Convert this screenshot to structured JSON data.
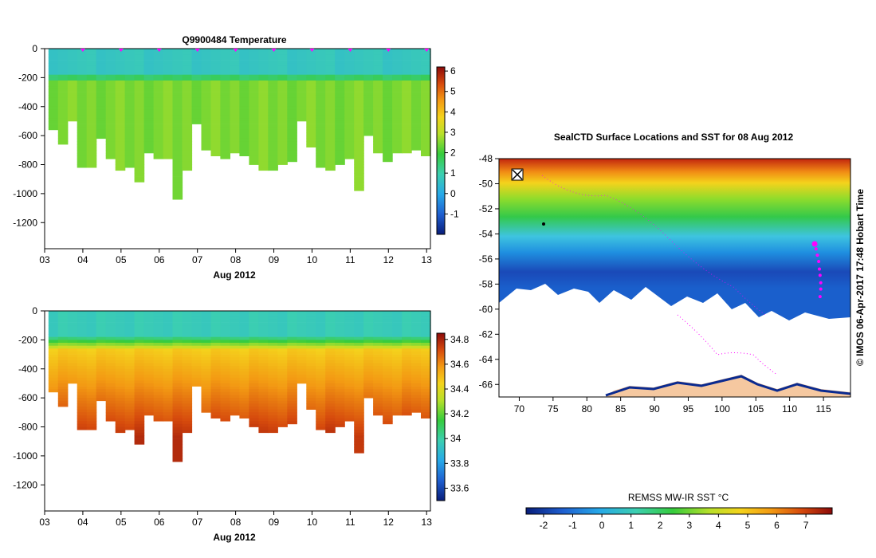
{
  "chart_data": [
    {
      "type": "heatmap",
      "title": "Q9900484  Temperature",
      "xlabel": "Aug 2012",
      "ylabel": "",
      "x_ticks": [
        "03",
        "04",
        "05",
        "06",
        "07",
        "08",
        "09",
        "10",
        "11",
        "12",
        "13"
      ],
      "x_range_days": [
        3,
        13.1
      ],
      "y_ticks": [
        0,
        -200,
        -400,
        -600,
        -800,
        -1000,
        -1200
      ],
      "ylim": [
        -1380,
        0
      ],
      "colorbar": {
        "ticks": [
          6,
          5,
          4,
          3,
          2,
          1,
          0,
          -1
        ],
        "range": [
          -2,
          6.2
        ]
      },
      "profile_times": [
        3.1,
        3.35,
        3.6,
        3.85,
        4.1,
        4.35,
        4.6,
        4.85,
        5.1,
        5.35,
        5.6,
        5.85,
        6.1,
        6.35,
        6.6,
        6.85,
        7.1,
        7.35,
        7.6,
        7.85,
        8.1,
        8.35,
        8.6,
        8.85,
        9.1,
        9.35,
        9.6,
        9.85,
        10.1,
        10.35,
        10.6,
        10.85,
        11.1,
        11.35,
        11.6,
        11.85,
        12.1,
        12.35,
        12.6,
        12.85
      ],
      "profile_max_depths": [
        -560,
        -650,
        -500,
        -820,
        -810,
        -620,
        -760,
        -840,
        -820,
        -910,
        -720,
        -760,
        -750,
        -1040,
        -830,
        -520,
        -700,
        -740,
        -750,
        -720,
        -740,
        -790,
        -840,
        -830,
        -790,
        -770,
        -500,
        -680,
        -810,
        -840,
        -800,
        -760,
        -980,
        -600,
        -720,
        -780,
        -720,
        -720,
        -700,
        -740
      ],
      "surface_value": 0.6,
      "deep_value": 2.3,
      "profile_markers_days": [
        4,
        5,
        6,
        7,
        8,
        9,
        10,
        11,
        12,
        13
      ]
    },
    {
      "type": "heatmap",
      "title": "",
      "xlabel": "Aug 2012",
      "ylabel": "",
      "x_ticks": [
        "03",
        "04",
        "05",
        "06",
        "07",
        "08",
        "09",
        "10",
        "11",
        "12",
        "13"
      ],
      "x_range_days": [
        3,
        13.1
      ],
      "y_ticks": [
        0,
        -200,
        -400,
        -600,
        -800,
        -1000,
        -1200
      ],
      "ylim": [
        -1380,
        0
      ],
      "colorbar": {
        "ticks": [
          34.8,
          34.6,
          34.4,
          34.2,
          34,
          33.8,
          33.6
        ],
        "range": [
          33.5,
          34.85
        ]
      },
      "surface_value": 33.95,
      "deep_value": 34.75
    },
    {
      "type": "heatmap",
      "title": "SealCTD Surface Locations and SST for 08 Aug 2012",
      "xlabel": "",
      "ylabel": "",
      "x_ticks": [
        70,
        75,
        80,
        85,
        90,
        95,
        100,
        105,
        110,
        115
      ],
      "y_ticks": [
        -48,
        -50,
        -52,
        -54,
        -56,
        -58,
        -60,
        -62,
        -64,
        -66
      ],
      "xlim": [
        67,
        119
      ],
      "ylim": [
        -67,
        -48
      ],
      "colorbar": {
        "label": "REMSS MW-IR SST °C",
        "ticks": [
          -2,
          -1,
          0,
          1,
          2,
          3,
          4,
          5,
          6,
          7
        ],
        "range": [
          -2.6,
          7.9
        ]
      },
      "track_positions": [
        {
          "lon": 113.7,
          "lat": -54.8
        },
        {
          "lon": 113.9,
          "lat": -55.2
        },
        {
          "lon": 114.1,
          "lat": -55.7
        },
        {
          "lon": 114.3,
          "lat": -56.2
        },
        {
          "lon": 114.4,
          "lat": -56.8
        },
        {
          "lon": 114.5,
          "lat": -57.3
        },
        {
          "lon": 114.6,
          "lat": -57.9
        },
        {
          "lon": 114.6,
          "lat": -58.4
        },
        {
          "lon": 114.5,
          "lat": -59.0
        }
      ],
      "side_label": "© IMOS 06-Apr-2017 17:48 Hobart Time"
    }
  ]
}
